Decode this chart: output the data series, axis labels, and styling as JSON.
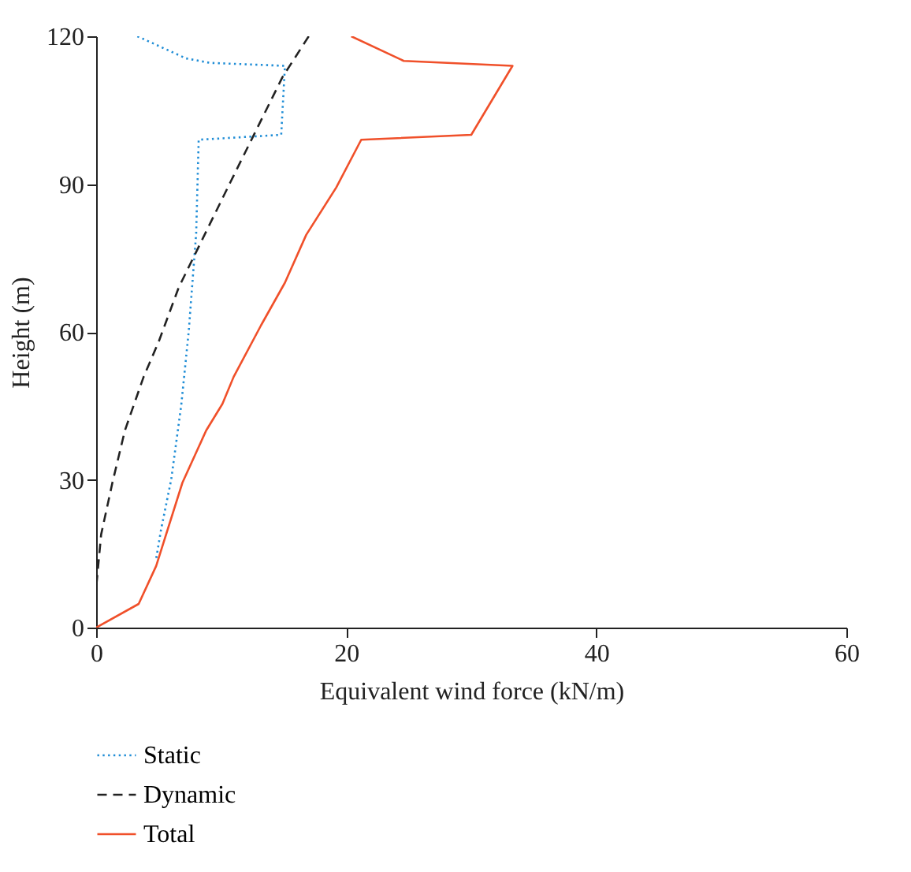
{
  "chart_data": {
    "type": "line",
    "xlabel": "Equivalent wind force (kN/m)",
    "ylabel": "Height (m)",
    "xlim": [
      0,
      60
    ],
    "xticks": [
      0,
      20,
      40,
      60
    ],
    "ylim": [
      0,
      120
    ],
    "yticks": [
      0,
      30,
      60,
      90,
      120
    ],
    "grid": false,
    "legend": "bottom left",
    "marker": "none",
    "series": [
      {
        "name": "Static",
        "color": "#1f8dd6",
        "line_style": "dotted",
        "x": [
          3.3,
          7.2,
          9.1,
          15.1,
          14.8,
          8.2,
          8.0,
          7.4,
          6.8,
          6.0,
          5.2,
          4.8
        ],
        "values": [
          120,
          115.5,
          114.6,
          114,
          100,
          99,
          80,
          60,
          45,
          30,
          20,
          14
        ]
      },
      {
        "name": "Dynamic",
        "color": "#222222",
        "line_style": "dashed",
        "x": [
          17.0,
          14.9,
          10.7,
          6.6,
          5.0,
          3.8,
          2.3,
          1.3,
          0.4,
          0.0
        ],
        "values": [
          120,
          111.7,
          90.2,
          69,
          58,
          50.9,
          40,
          29.4,
          18.9,
          8
        ]
      },
      {
        "name": "Total",
        "color": "#f0502a",
        "line_style": "solid",
        "x": [
          0,
          3.4,
          4.8,
          6.9,
          8.8,
          10.1,
          11.0,
          13.2,
          15.1,
          16.8,
          19.2,
          21.2,
          30.0,
          33.3,
          24.6,
          20.4
        ],
        "values": [
          0,
          4.8,
          12.5,
          29.4,
          40,
          45.4,
          50.9,
          61.4,
          70,
          79.7,
          89.3,
          99,
          100,
          114,
          115,
          120
        ]
      }
    ]
  }
}
